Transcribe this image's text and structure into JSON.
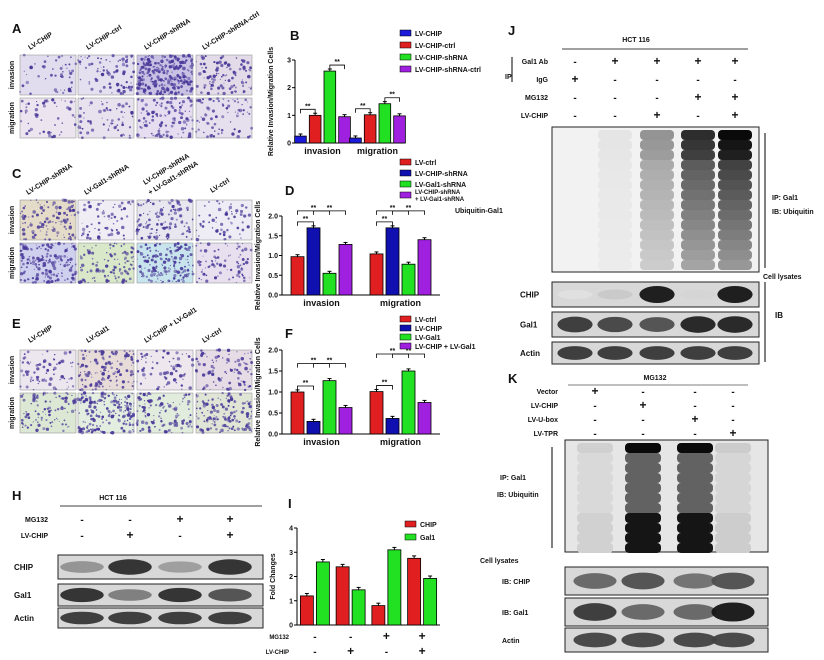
{
  "panels": {
    "A": {
      "letter": "A",
      "columns": [
        "LV-CHIP",
        "LV-CHIP-ctrl",
        "LV-CHIP-shRNA",
        "LV-CHIP-shRNA-ctrl"
      ],
      "rows": [
        "invasion",
        "migration"
      ]
    },
    "C": {
      "letter": "C",
      "columns": [
        "LV-CHIP-shRNA",
        "LV-Gal1-shRNA",
        "LV-CHIP-shRNA",
        "+ LV-Gal1-shRNA",
        "LV-ctrl"
      ],
      "rows": [
        "invasion",
        "migration"
      ]
    },
    "E": {
      "letter": "E",
      "columns": [
        "LV-CHIP",
        "LV-Gal1",
        "LV-CHIP + LV-Gal1",
        "LV-ctrl"
      ],
      "rows": [
        "invasion",
        "migration"
      ]
    },
    "H": {
      "letter": "H",
      "cell_line": "HCT 116",
      "conditions": [
        {
          "label": "MG132",
          "signs": [
            "-",
            "-",
            "+",
            "+"
          ]
        },
        {
          "label": "LV-CHIP",
          "signs": [
            "-",
            "+",
            "-",
            "+"
          ]
        }
      ],
      "blots": [
        {
          "label": "CHIP",
          "intensity": [
            0.4,
            0.85,
            0.35,
            0.85
          ]
        },
        {
          "label": "Gal1",
          "intensity": [
            0.85,
            0.5,
            0.85,
            0.7
          ]
        },
        {
          "label": "Actin",
          "intensity": [
            0.8,
            0.8,
            0.8,
            0.8
          ]
        }
      ]
    },
    "J": {
      "letter": "J",
      "cell_line": "HCT 116",
      "ip_label": "IP",
      "conditions": [
        {
          "label": "Gal1 Ab",
          "signs": [
            "-",
            "+",
            "+",
            "+",
            "+"
          ]
        },
        {
          "label": "IgG",
          "signs": [
            "+",
            "-",
            "-",
            "-",
            "-"
          ]
        },
        {
          "label": "MG132",
          "signs": [
            "-",
            "-",
            "-",
            "+",
            "+"
          ]
        },
        {
          "label": "LV-CHIP",
          "signs": [
            "-",
            "-",
            "+",
            "-",
            "+"
          ]
        }
      ],
      "ip_blot": {
        "left_label": "Ubiquitin-Gal1",
        "right_labels": [
          "IP: Gal1",
          "IB: Ubiquitin"
        ],
        "intensity": [
          0.02,
          0.05,
          0.4,
          0.85,
          1.0
        ]
      },
      "cell_lysates_label": "Cell lysates",
      "ib_label": "IB",
      "blots": [
        {
          "label": "CHIP",
          "intensity": [
            0.05,
            0.15,
            0.95,
            0.1,
            0.95
          ]
        },
        {
          "label": "Gal1",
          "intensity": [
            0.8,
            0.75,
            0.7,
            0.9,
            0.9
          ]
        },
        {
          "label": "Actin",
          "intensity": [
            0.8,
            0.8,
            0.8,
            0.8,
            0.8
          ]
        }
      ]
    },
    "K": {
      "letter": "K",
      "treatment": "MG132",
      "conditions": [
        {
          "label": "Vector",
          "signs": [
            "+",
            "-",
            "-",
            "-"
          ]
        },
        {
          "label": "LV-CHIP",
          "signs": [
            "-",
            "+",
            "-",
            "-"
          ]
        },
        {
          "label": "LV-U-box",
          "signs": [
            "-",
            "-",
            "+",
            "-"
          ]
        },
        {
          "label": "LV-TPR",
          "signs": [
            "-",
            "-",
            "-",
            "+"
          ]
        }
      ],
      "ip_blot": {
        "labels": [
          "IP: Gal1",
          "IB: Ubiquitin"
        ],
        "intensity": [
          0.1,
          1.0,
          1.0,
          0.12
        ]
      },
      "cell_lysates_label": "Cell lysates",
      "blots": [
        {
          "label": "IB: CHIP",
          "intensity": [
            0.6,
            0.7,
            0.55,
            0.7
          ]
        },
        {
          "label": "IB: Gal1",
          "intensity": [
            0.8,
            0.6,
            0.6,
            0.95
          ]
        },
        {
          "label": "Actin",
          "intensity": [
            0.75,
            0.75,
            0.75,
            0.75
          ]
        }
      ]
    }
  },
  "chart_data": [
    {
      "panel": "B",
      "type": "bar",
      "ylabel": "Relative Invasion/Migration Cells",
      "categories": [
        "invasion",
        "migration"
      ],
      "ylim": [
        0,
        3
      ],
      "yticks": [
        "0",
        "1",
        "2",
        "3"
      ],
      "series": [
        {
          "name": "LV-CHIP",
          "color": "#1a1ad8",
          "values": [
            0.25,
            0.18
          ]
        },
        {
          "name": "LV-CHIP-ctrl",
          "color": "#e02020",
          "values": [
            1.0,
            1.02
          ]
        },
        {
          "name": "LV-CHIP-shRNA",
          "color": "#22e022",
          "values": [
            2.6,
            1.42
          ]
        },
        {
          "name": "LV-CHIP-shRNA-ctrl",
          "color": "#a020e0",
          "values": [
            0.95,
            0.98
          ]
        }
      ],
      "significance": [
        [
          0,
          0,
          1,
          "**"
        ],
        [
          0,
          2,
          3,
          "**"
        ],
        [
          1,
          0,
          1,
          "**"
        ],
        [
          1,
          2,
          3,
          "**"
        ]
      ],
      "legend": "top-right"
    },
    {
      "panel": "D",
      "type": "bar",
      "ylabel": "Relative Invasion/Migration Cells",
      "categories": [
        "invasion",
        "migration"
      ],
      "ylim": [
        0,
        2
      ],
      "yticks": [
        "0.0",
        "0.5",
        "1.0",
        "1.5",
        "2.0"
      ],
      "series": [
        {
          "name": "LV-ctrl",
          "color": "#e02020",
          "values": [
            0.97,
            1.04
          ]
        },
        {
          "name": "LV-CHIP-shRNA",
          "color": "#1010b0",
          "values": [
            1.7,
            1.7
          ]
        },
        {
          "name": "LV-Gal1-shRNA",
          "color": "#22e022",
          "values": [
            0.55,
            0.78
          ]
        },
        {
          "name": "LV-CHIP-shRNA + LV-Gal1-shRNA",
          "color": "#a020e0",
          "values": [
            1.28,
            1.4
          ]
        }
      ],
      "significance": [
        [
          0,
          0,
          1,
          "**"
        ],
        [
          0,
          0,
          2,
          "**"
        ],
        [
          0,
          1,
          3,
          "**"
        ],
        [
          1,
          0,
          1,
          "**"
        ],
        [
          1,
          0,
          2,
          "**"
        ],
        [
          1,
          1,
          3,
          "**"
        ]
      ],
      "legend": "top-right"
    },
    {
      "panel": "F",
      "type": "bar",
      "ylabel": "Relative Invasion/Migration Cells",
      "categories": [
        "invasion",
        "migration"
      ],
      "ylim": [
        0,
        2
      ],
      "yticks": [
        "0.0",
        "0.5",
        "1.0",
        "1.5",
        "2.0"
      ],
      "series": [
        {
          "name": "LV-ctrl",
          "color": "#e02020",
          "values": [
            1.0,
            1.01
          ]
        },
        {
          "name": "LV-CHIP",
          "color": "#1010b0",
          "values": [
            0.3,
            0.37
          ]
        },
        {
          "name": "LV-Gal1",
          "color": "#22e022",
          "values": [
            1.27,
            1.5
          ]
        },
        {
          "name": "LV-CHIP + LV-Gal1",
          "color": "#a020e0",
          "values": [
            0.63,
            0.75
          ]
        }
      ],
      "significance": [
        [
          0,
          0,
          1,
          "**"
        ],
        [
          0,
          0,
          2,
          "**"
        ],
        [
          0,
          1,
          3,
          "**"
        ],
        [
          1,
          0,
          1,
          "**"
        ],
        [
          1,
          0,
          2,
          "**"
        ],
        [
          1,
          1,
          3,
          "**"
        ]
      ],
      "legend": "top-right"
    },
    {
      "panel": "I",
      "type": "bar",
      "ylabel": "Fold Changes",
      "categories": [
        "",
        "",
        "",
        ""
      ],
      "ylim": [
        0,
        4
      ],
      "yticks": [
        "0",
        "1",
        "2",
        "3",
        "4"
      ],
      "series": [
        {
          "name": "CHIP",
          "color": "#e02020",
          "values": [
            1.2,
            2.4,
            0.8,
            2.75
          ]
        },
        {
          "name": "Gal1",
          "color": "#22e022",
          "values": [
            2.6,
            1.45,
            3.1,
            1.92
          ]
        }
      ],
      "x_conditions": [
        {
          "label": "MG132",
          "signs": [
            "-",
            "-",
            "+",
            "+"
          ]
        },
        {
          "label": "LV-CHIP",
          "signs": [
            "-",
            "+",
            "-",
            "+"
          ]
        }
      ],
      "legend": "top-right"
    }
  ]
}
